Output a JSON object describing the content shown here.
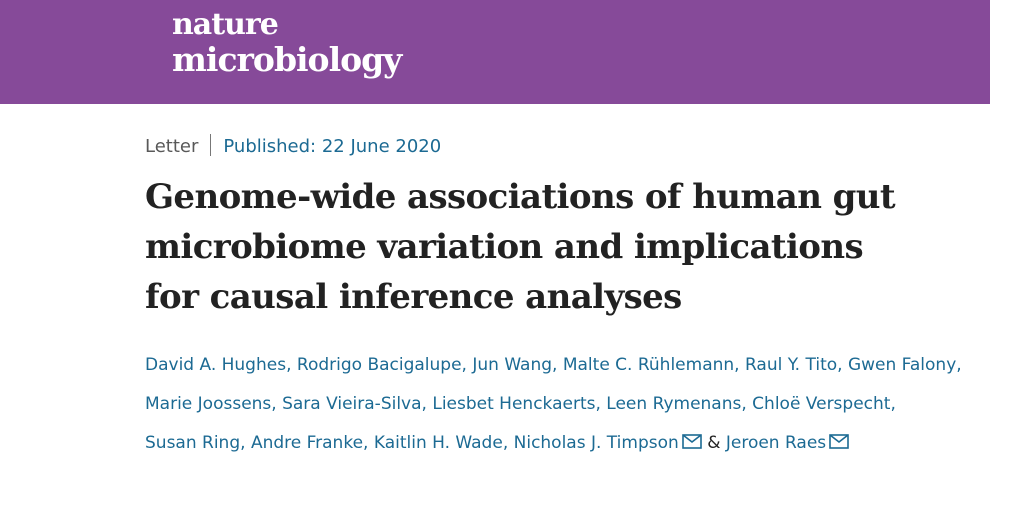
{
  "brand": {
    "line1": "nature",
    "line2": "microbiology",
    "banner_color": "#864a99"
  },
  "article": {
    "type": "Letter",
    "published": "Published: 22 June 2020",
    "title_lines": [
      "Genome-wide associations of human gut",
      "microbiome variation and implications",
      "for causal inference analyses"
    ]
  },
  "authors": [
    "David A. Hughes",
    "Rodrigo Bacigalupe",
    "Jun Wang",
    "Malte C. Rühlemann",
    "Raul Y. Tito",
    "Gwen Falony",
    "Marie Joossens",
    "Sara Vieira-Silva",
    "Liesbet Henckaerts",
    "Leen Rymenans",
    "Chloë Verspecht",
    "Susan Ring",
    "Andre Franke",
    "Kaitlin H. Wade",
    "Nicholas J. Timpson",
    "Jeroen Raes"
  ],
  "separators": {
    "comma": ", ",
    "ampersand": "&"
  },
  "icons": {
    "mail": "envelope-icon"
  },
  "colors": {
    "link": "#1c6a93",
    "title": "#222222"
  }
}
